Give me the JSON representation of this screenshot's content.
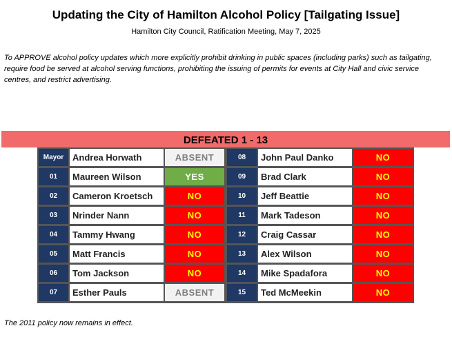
{
  "title": "Updating the City of Hamilton Alcohol Policy [Tailgating Issue]",
  "subtitle": "Hamilton City Council, Ratification Meeting, May 7, 2025",
  "description": "To APPROVE alcohol policy updates which more explicitly prohibit drinking in public spaces (including parks) such as tailgating, require food be served at alcohol serving functions, prohibiting the issuing of permits for events at City Hall and civic service centres, and restrict advertising.",
  "result": "DEFEATED 1 - 13",
  "left_column": [
    {
      "ward": "Mayor",
      "name": "Andrea Horwath",
      "vote": "ABSENT"
    },
    {
      "ward": "01",
      "name": "Maureen Wilson",
      "vote": "YES"
    },
    {
      "ward": "02",
      "name": "Cameron Kroetsch",
      "vote": "NO"
    },
    {
      "ward": "03",
      "name": "Nrinder Nann",
      "vote": "NO"
    },
    {
      "ward": "04",
      "name": "Tammy Hwang",
      "vote": "NO"
    },
    {
      "ward": "05",
      "name": "Matt Francis",
      "vote": "NO"
    },
    {
      "ward": "06",
      "name": "Tom Jackson",
      "vote": "NO"
    },
    {
      "ward": "07",
      "name": "Esther Pauls",
      "vote": "ABSENT"
    }
  ],
  "right_column": [
    {
      "ward": "08",
      "name": "John Paul Danko",
      "vote": "NO"
    },
    {
      "ward": "09",
      "name": "Brad Clark",
      "vote": "NO"
    },
    {
      "ward": "10",
      "name": "Jeff Beattie",
      "vote": "NO"
    },
    {
      "ward": "11",
      "name": "Mark Tadeson",
      "vote": "NO"
    },
    {
      "ward": "12",
      "name": "Craig Cassar",
      "vote": "NO"
    },
    {
      "ward": "13",
      "name": "Alex Wilson",
      "vote": "NO"
    },
    {
      "ward": "14",
      "name": "Mike Spadafora",
      "vote": "NO"
    },
    {
      "ward": "15",
      "name": "Ted McMeekin",
      "vote": "NO"
    }
  ],
  "footer": "The 2011 policy now remains in effect.",
  "colors": {
    "banner": "#f26b6b",
    "ward_cell": "#1f3864",
    "no": "#ff0000",
    "yes": "#70ad47",
    "absent": "#f2f2f2"
  }
}
